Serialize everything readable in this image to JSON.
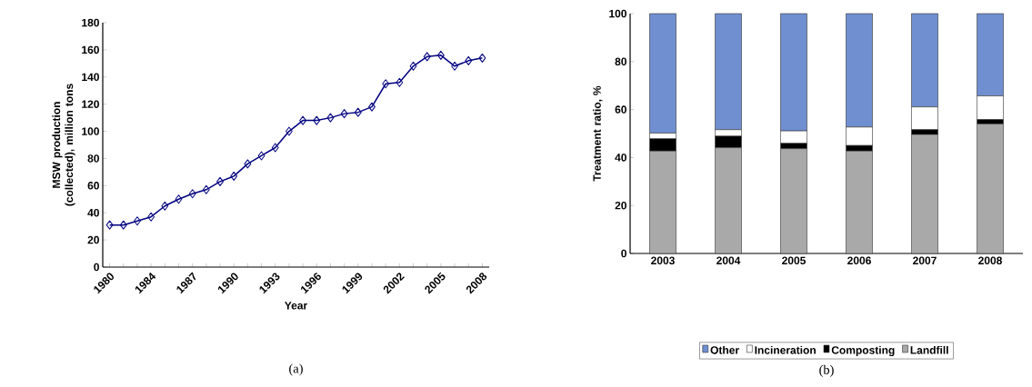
{
  "chart_data": [
    {
      "type": "line",
      "xlabel": "Year",
      "ylabel": "MSW production (collected), million tons",
      "categories": [
        "1980",
        null,
        null,
        "1984",
        null,
        null,
        "1987",
        null,
        null,
        "1990",
        null,
        null,
        "1993",
        null,
        null,
        "1996",
        null,
        null,
        "1999",
        null,
        null,
        "2002",
        null,
        null,
        "2005",
        null,
        null,
        "2008"
      ],
      "series": [
        {
          "color": "#000080",
          "values": [
            31,
            31,
            34,
            37,
            45,
            50,
            54,
            57,
            63,
            67,
            76,
            82,
            88,
            100,
            108,
            108,
            110,
            113,
            114,
            118,
            135,
            136,
            148,
            155,
            156,
            148,
            152,
            154
          ]
        }
      ],
      "ylim": [
        0,
        180
      ],
      "yticks": [
        0,
        20,
        40,
        60,
        80,
        100,
        120,
        140,
        160,
        180
      ],
      "marker": "diamond",
      "grid": false,
      "legend": false,
      "annotations": [
        "(a)"
      ]
    },
    {
      "type": "bar",
      "stacked": true,
      "ylabel": "Treatment ratio, %",
      "categories": [
        "2003",
        "2004",
        "2005",
        "2006",
        "2007",
        "2008"
      ],
      "series": [
        {
          "name": "Landfill",
          "color": "#a9a9a9",
          "values": [
            42.7,
            44.1,
            43.7,
            42.7,
            49.6,
            54.0
          ]
        },
        {
          "name": "Composting",
          "color": "#000000",
          "values": [
            5.1,
            4.8,
            2.2,
            2.3,
            2.0,
            1.8
          ]
        },
        {
          "name": "Incineration",
          "color": "#ffffff",
          "values": [
            2.4,
            2.7,
            5.2,
            7.7,
            9.5,
            9.9
          ]
        },
        {
          "name": "Other",
          "color": "#6f8fd0",
          "values": [
            49.8,
            48.4,
            48.9,
            47.3,
            38.9,
            34.3
          ]
        }
      ],
      "ylim": [
        0,
        100
      ],
      "yticks": [
        0,
        20,
        40,
        60,
        80,
        100
      ],
      "grid": false,
      "legend": "bottom",
      "annotations": [
        "(b)"
      ]
    }
  ]
}
